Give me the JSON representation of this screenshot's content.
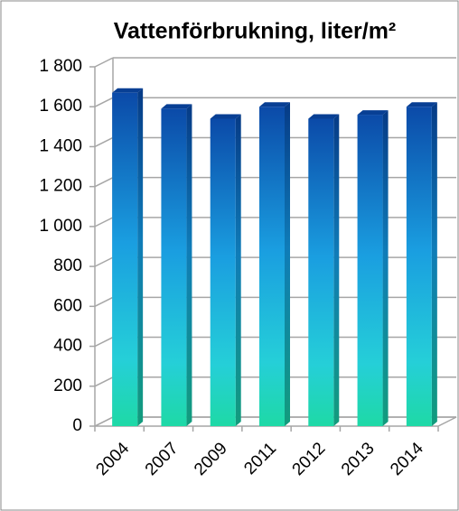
{
  "chart_data": {
    "type": "bar",
    "title": "Vattenförbrukning, liter/m²",
    "categories": [
      "2004",
      "2007",
      "2009",
      "2011",
      "2012",
      "2013",
      "2014"
    ],
    "values": [
      1670,
      1590,
      1540,
      1600,
      1540,
      1560,
      1600
    ],
    "color": "#1a9ee0",
    "ylim": [
      0,
      1800
    ],
    "yticks": [
      0,
      200,
      400,
      600,
      800,
      {
        "value": 1000,
        "label": "1 000"
      },
      {
        "value": 1200,
        "label": "1 200"
      },
      {
        "value": 1400,
        "label": "1 400"
      },
      {
        "value": 1600,
        "label": "1 600"
      },
      {
        "value": 1800,
        "label": "1 800"
      }
    ],
    "grid": true
  }
}
